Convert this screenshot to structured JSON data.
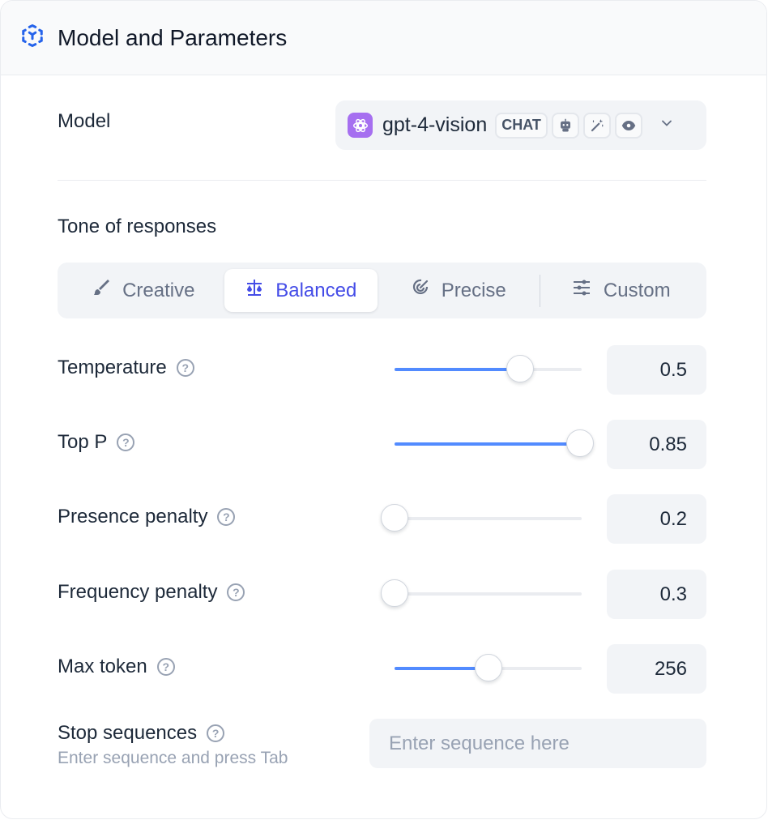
{
  "header": {
    "title": "Model and Parameters",
    "icon": "cube-outline-icon",
    "accent": "#2563eb"
  },
  "model": {
    "label": "Model",
    "name": "gpt-4-vision",
    "badge": "CHAT",
    "capability_icons": [
      "robot-icon",
      "magic-wand-icon",
      "eye-icon"
    ]
  },
  "tone": {
    "label": "Tone of responses",
    "tabs": [
      {
        "label": "Creative",
        "icon": "brush-icon"
      },
      {
        "label": "Balanced",
        "icon": "scale-icon",
        "active": true
      },
      {
        "label": "Precise",
        "icon": "target-icon"
      },
      {
        "label": "Custom",
        "icon": "sliders-icon"
      }
    ]
  },
  "params": [
    {
      "label": "Temperature",
      "value": "0.5",
      "fill_percent": 67
    },
    {
      "label": "Top P",
      "value": "0.85",
      "fill_percent": 99
    },
    {
      "label": "Presence penalty",
      "value": "0.2",
      "fill_percent": 0
    },
    {
      "label": "Frequency penalty",
      "value": "0.3",
      "fill_percent": 0
    },
    {
      "label": "Max token",
      "value": "256",
      "fill_percent": 50
    }
  ],
  "stop": {
    "label": "Stop sequences",
    "hint": "Enter sequence and press Tab",
    "placeholder": "Enter sequence here"
  }
}
